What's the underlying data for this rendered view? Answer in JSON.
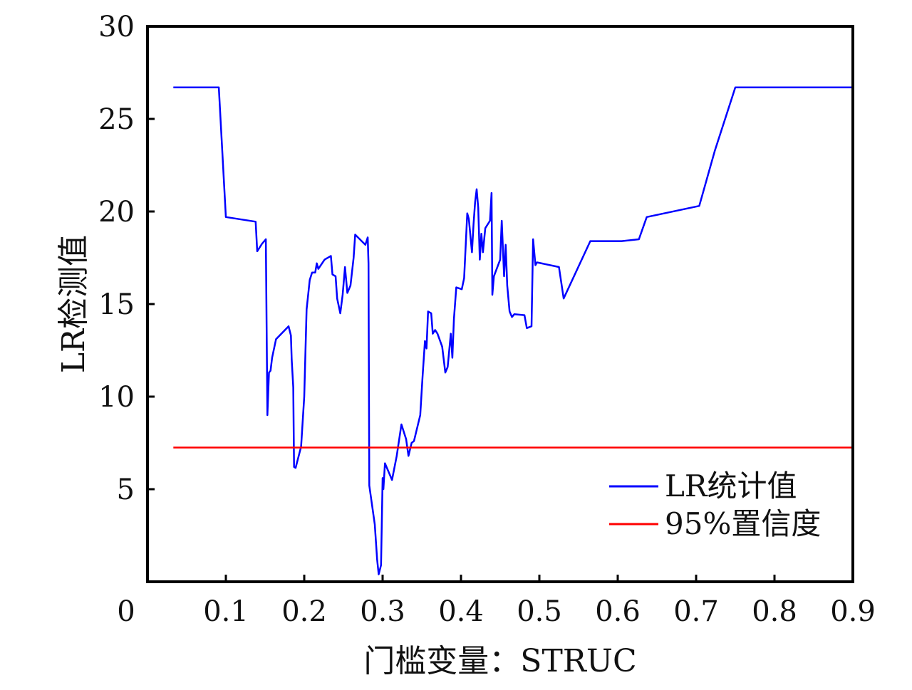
{
  "chart_data": {
    "type": "line",
    "xlabel": "门槛变量：STRUC",
    "ylabel": "LR检测值",
    "xlim": [
      0,
      0.9
    ],
    "ylim": [
      0,
      30
    ],
    "x_ticks": [
      "0",
      "0.1",
      "0.2",
      "0.3",
      "0.4",
      "0.5",
      "0.6",
      "0.7",
      "0.8",
      "0.9"
    ],
    "y_ticks": [
      "5",
      "10",
      "15",
      "20",
      "25",
      "30"
    ],
    "grid": false,
    "legend_position": "bottom-right",
    "series": [
      {
        "name": "LR统计值",
        "color": "#0000ff",
        "points": [
          [
            0.033,
            26.7
          ],
          [
            0.091,
            26.7
          ],
          [
            0.1,
            19.7
          ],
          [
            0.138,
            19.45
          ],
          [
            0.14,
            17.85
          ],
          [
            0.146,
            18.25
          ],
          [
            0.151,
            18.5
          ],
          [
            0.153,
            9.0
          ],
          [
            0.155,
            11.3
          ],
          [
            0.157,
            11.4
          ],
          [
            0.159,
            12.1
          ],
          [
            0.164,
            13.1
          ],
          [
            0.18,
            13.8
          ],
          [
            0.183,
            13.3
          ],
          [
            0.184,
            12.0
          ],
          [
            0.186,
            10.5
          ],
          [
            0.187,
            6.2
          ],
          [
            0.189,
            6.15
          ],
          [
            0.196,
            7.3
          ],
          [
            0.2,
            10.0
          ],
          [
            0.203,
            14.7
          ],
          [
            0.207,
            16.3
          ],
          [
            0.21,
            16.7
          ],
          [
            0.214,
            16.7
          ],
          [
            0.216,
            17.2
          ],
          [
            0.218,
            16.9
          ],
          [
            0.226,
            17.4
          ],
          [
            0.234,
            17.6
          ],
          [
            0.236,
            16.6
          ],
          [
            0.24,
            16.5
          ],
          [
            0.242,
            15.3
          ],
          [
            0.246,
            14.5
          ],
          [
            0.249,
            15.5
          ],
          [
            0.252,
            17.0
          ],
          [
            0.255,
            15.6
          ],
          [
            0.259,
            16.0
          ],
          [
            0.263,
            17.5
          ],
          [
            0.265,
            18.75
          ],
          [
            0.278,
            18.2
          ],
          [
            0.281,
            18.6
          ],
          [
            0.282,
            17.2
          ],
          [
            0.283,
            5.2
          ],
          [
            0.29,
            3.1
          ],
          [
            0.293,
            1.2
          ],
          [
            0.295,
            0.4
          ],
          [
            0.298,
            0.9
          ],
          [
            0.3,
            5.6
          ],
          [
            0.301,
            5.0
          ],
          [
            0.303,
            6.4
          ],
          [
            0.312,
            5.5
          ],
          [
            0.318,
            6.8
          ],
          [
            0.324,
            8.5
          ],
          [
            0.33,
            7.7
          ],
          [
            0.333,
            6.8
          ],
          [
            0.337,
            7.5
          ],
          [
            0.34,
            7.6
          ],
          [
            0.348,
            9.0
          ],
          [
            0.351,
            11.1
          ],
          [
            0.354,
            13.0
          ],
          [
            0.356,
            12.6
          ],
          [
            0.358,
            14.6
          ],
          [
            0.362,
            14.5
          ],
          [
            0.364,
            13.4
          ],
          [
            0.367,
            13.6
          ],
          [
            0.37,
            13.4
          ],
          [
            0.376,
            12.7
          ],
          [
            0.38,
            11.3
          ],
          [
            0.383,
            11.6
          ],
          [
            0.387,
            13.4
          ],
          [
            0.389,
            12.1
          ],
          [
            0.391,
            14.2
          ],
          [
            0.394,
            15.9
          ],
          [
            0.401,
            15.8
          ],
          [
            0.404,
            16.4
          ],
          [
            0.408,
            19.9
          ],
          [
            0.41,
            19.6
          ],
          [
            0.414,
            17.8
          ],
          [
            0.416,
            19.3
          ],
          [
            0.418,
            20.5
          ],
          [
            0.42,
            21.2
          ],
          [
            0.422,
            20.2
          ],
          [
            0.424,
            17.4
          ],
          [
            0.426,
            18.8
          ],
          [
            0.428,
            17.8
          ],
          [
            0.431,
            19.1
          ],
          [
            0.437,
            19.5
          ],
          [
            0.439,
            21.0
          ],
          [
            0.44,
            15.5
          ],
          [
            0.442,
            16.5
          ],
          [
            0.45,
            17.4
          ],
          [
            0.452,
            19.5
          ],
          [
            0.455,
            16.5
          ],
          [
            0.457,
            18.2
          ],
          [
            0.459,
            16.0
          ],
          [
            0.462,
            14.6
          ],
          [
            0.465,
            14.3
          ],
          [
            0.468,
            14.45
          ],
          [
            0.481,
            14.4
          ],
          [
            0.484,
            13.7
          ],
          [
            0.49,
            13.8
          ],
          [
            0.492,
            18.5
          ],
          [
            0.495,
            17.1
          ],
          [
            0.497,
            17.25
          ],
          [
            0.525,
            17.0
          ],
          [
            0.531,
            15.3
          ],
          [
            0.565,
            18.4
          ],
          [
            0.605,
            18.4
          ],
          [
            0.627,
            18.5
          ],
          [
            0.637,
            19.7
          ],
          [
            0.704,
            20.3
          ],
          [
            0.724,
            23.3
          ],
          [
            0.75,
            26.7
          ],
          [
            0.9,
            26.7
          ]
        ]
      },
      {
        "name": "95%置信度",
        "color": "#ff0000",
        "points": [
          [
            0.033,
            7.25
          ],
          [
            0.9,
            7.25
          ]
        ]
      }
    ]
  }
}
